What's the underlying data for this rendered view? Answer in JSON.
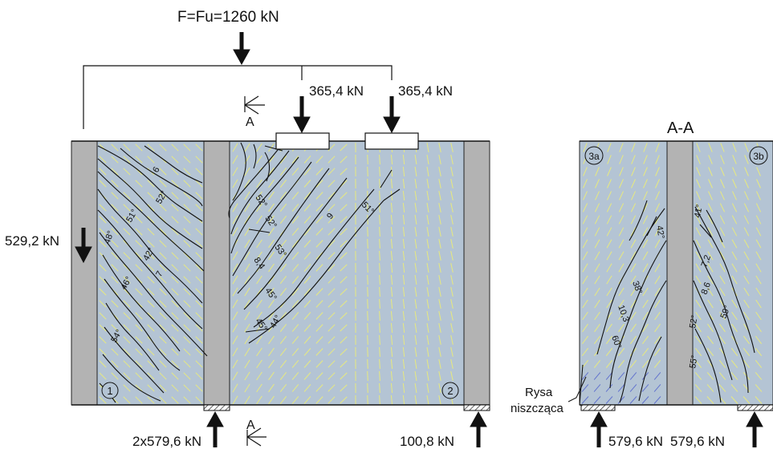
{
  "loads": {
    "total": "F=Fu=1260 kN",
    "point_left": "365,4 kN",
    "point_right": "365,4 kN",
    "side_left": "529,2 kN"
  },
  "supports": {
    "middle": "2x579,6 kN",
    "right": "100,8 kN",
    "section_left": "579,6 kN",
    "section_right": "579,6 kN"
  },
  "section": {
    "title": "A-A",
    "mark": "A",
    "crack_label_line1": "Rysa",
    "crack_label_line2": "niszcząca"
  },
  "panels": {
    "p1": "1",
    "p2": "2",
    "p3a": "3a",
    "p3b": "3b"
  },
  "annotations": {
    "left_panel": [
      "6",
      "52°",
      "51°",
      "48°",
      "42°",
      "7",
      "46°",
      "54°"
    ],
    "right_panel": [
      "52°",
      "52°",
      "51°",
      "9",
      "53°",
      "8,4",
      "45°",
      "45°",
      "44°"
    ],
    "section_a": [
      "42°",
      "38°",
      "10,3",
      "60°"
    ],
    "section_b": [
      "41°",
      "7,2",
      "8,6",
      "59°",
      "52°",
      "55°"
    ]
  },
  "colors": {
    "panel_fill": "#b4c4d4",
    "column_fill": "#b3b3b3",
    "vector_yellow": "#f0f070",
    "vector_blue": "#5566cc",
    "line": "#111111"
  }
}
